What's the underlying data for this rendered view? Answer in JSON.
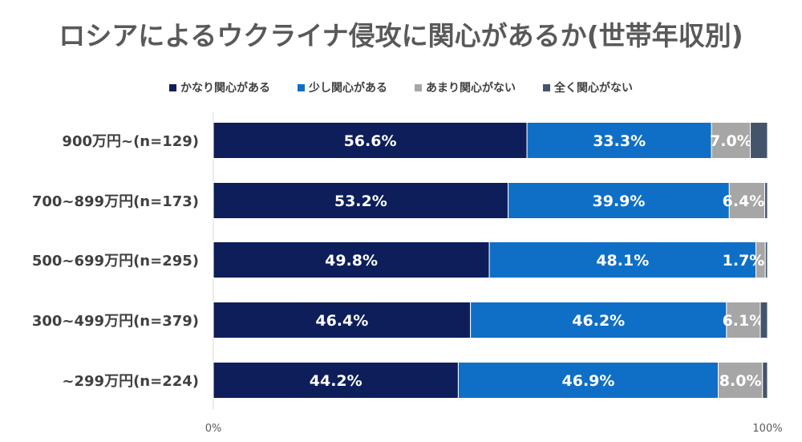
{
  "chart_data": {
    "type": "bar",
    "orientation": "horizontal",
    "stacked": true,
    "title": "ロシアによるウクライナ侵攻に関心があるか(世帯年収別)",
    "categories": [
      "900万円~(n=129)",
      "700~899万円(n=173)",
      "500~699万円(n=295)",
      "300~499万円(n=379)",
      "~299万円(n=224)"
    ],
    "series": [
      {
        "name": "かなり関心がある",
        "color": "#0d1e5b",
        "values": [
          56.6,
          53.2,
          49.8,
          46.4,
          44.2
        ],
        "labels": [
          "56.6%",
          "53.2%",
          "49.8%",
          "46.4%",
          "44.2%"
        ]
      },
      {
        "name": "少し関心がある",
        "color": "#0f6fc6",
        "values": [
          33.3,
          39.9,
          48.1,
          46.2,
          46.9
        ],
        "labels": [
          "33.3%",
          "39.9%",
          "48.1%",
          "46.2%",
          "46.9%"
        ]
      },
      {
        "name": "あまり関心がない",
        "color": "#a6a6a6",
        "values": [
          7.0,
          6.4,
          1.7,
          6.1,
          8.0
        ],
        "labels": [
          "7.0%",
          "6.4%",
          "1.7%",
          "6.1%",
          "8.0%"
        ]
      },
      {
        "name": "全く関心がない",
        "color": "#44546a",
        "values": [
          3.1,
          0.5,
          0.4,
          1.3,
          0.9
        ],
        "labels": [
          "",
          "",
          "",
          "",
          ""
        ]
      }
    ],
    "xlim": [
      0,
      100
    ],
    "x_tick_labels": [
      "0%",
      "100%"
    ],
    "legend_position": "top",
    "grid": false
  }
}
